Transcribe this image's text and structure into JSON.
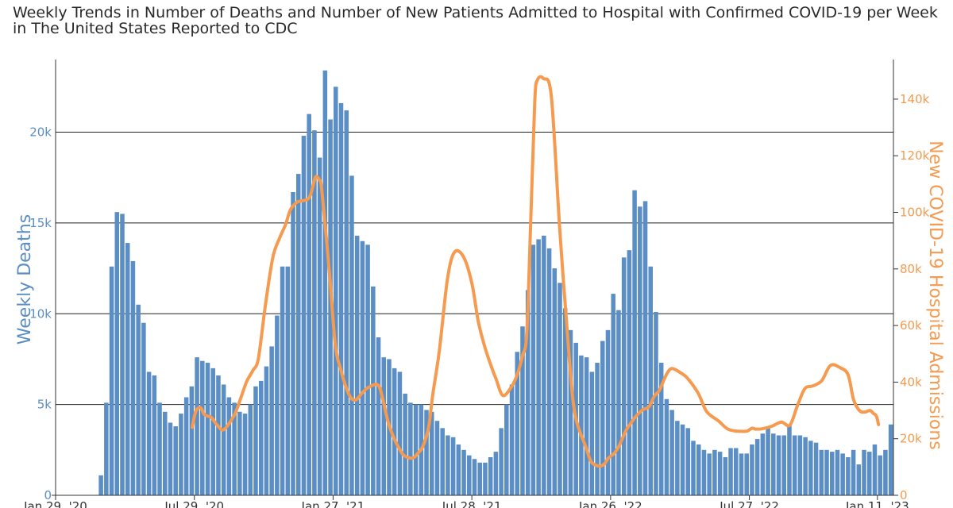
{
  "chart_data": {
    "type": "bar",
    "title": "Weekly Trends in Number of Deaths and Number of New Patients Admitted to Hospital with Confirmed COVID-19 per Week in The United States Reported to CDC",
    "ylabel_left": "Weekly Deaths",
    "ylabel_right": "New COVID-19 Hospital Admissions",
    "ylim_left": [
      0,
      24000
    ],
    "ylim_right": [
      0,
      154000
    ],
    "yticks_left": [
      {
        "value": 0,
        "label": "0"
      },
      {
        "value": 5000,
        "label": "5k"
      },
      {
        "value": 10000,
        "label": "10k"
      },
      {
        "value": 15000,
        "label": "15k"
      },
      {
        "value": 20000,
        "label": "20k"
      }
    ],
    "yticks_right": [
      {
        "value": 0,
        "label": "0"
      },
      {
        "value": 20000,
        "label": "20k"
      },
      {
        "value": 40000,
        "label": "40k"
      },
      {
        "value": 60000,
        "label": "60k"
      },
      {
        "value": 80000,
        "label": "80k"
      },
      {
        "value": 100000,
        "label": "100k"
      },
      {
        "value": 120000,
        "label": "120k"
      },
      {
        "value": 140000,
        "label": "140k"
      }
    ],
    "xticks": [
      {
        "week": 0,
        "label": "Jan 29, '20"
      },
      {
        "week": 26,
        "label": "Jul 29, '20"
      },
      {
        "week": 52,
        "label": "Jan 27, '21"
      },
      {
        "week": 78,
        "label": "Jul 28, '21"
      },
      {
        "week": 104,
        "label": "Jan 26, '22"
      },
      {
        "week": 130,
        "label": "Jul 27, '22"
      },
      {
        "week": 154,
        "label": "Jan 11, '23"
      }
    ],
    "grid": true,
    "series": [
      {
        "name": "Weekly Deaths",
        "type": "bar",
        "color": "#5b8ec4",
        "values": [
          0,
          0,
          0,
          0,
          0,
          0,
          0,
          0,
          1100,
          5100,
          12600,
          15600,
          15500,
          13900,
          12900,
          10500,
          9500,
          6800,
          6600,
          5100,
          4600,
          4000,
          3800,
          4500,
          5400,
          6000,
          7600,
          7400,
          7300,
          7000,
          6600,
          6100,
          5400,
          5100,
          4600,
          4500,
          5000,
          6000,
          6300,
          7100,
          8200,
          9900,
          12600,
          12600,
          16700,
          17700,
          19800,
          21000,
          20100,
          18600,
          23400,
          20700,
          22500,
          21600,
          21200,
          17600,
          14300,
          14000,
          13800,
          11500,
          8700,
          7600,
          7500,
          7000,
          6800,
          5600,
          5100,
          5000,
          5000,
          4700,
          4600,
          4100,
          3700,
          3300,
          3200,
          2800,
          2500,
          2200,
          2000,
          1800,
          1800,
          2100,
          2400,
          3700,
          5000,
          6100,
          7900,
          9300,
          11300,
          13800,
          14100,
          14300,
          13600,
          12500,
          11700,
          10300,
          9100,
          8400,
          7700,
          7600,
          6800,
          7300,
          8500,
          9100,
          11100,
          10200,
          13100,
          13500,
          16800,
          15900,
          16200,
          12600,
          10100,
          7300,
          5300,
          4700,
          4100,
          3900,
          3700,
          3000,
          2800,
          2500,
          2300,
          2500,
          2400,
          2100,
          2600,
          2600,
          2300,
          2300,
          2800,
          3100,
          3400,
          3700,
          3400,
          3300,
          3300,
          3900,
          3300,
          3300,
          3200,
          3000,
          2900,
          2500,
          2500,
          2400,
          2500,
          2300,
          2100,
          2500,
          1700,
          2500,
          2400,
          2800,
          2200,
          2500,
          3900
        ]
      },
      {
        "name": "New COVID-19 Hospital Admissions",
        "type": "line",
        "color": "#f59a4f",
        "x": [
          25.6,
          26.3,
          27.2,
          27.8,
          28.6,
          29.2,
          30.3,
          31.5,
          33.5,
          34.7,
          35.8,
          37,
          38,
          39.3,
          40.7,
          42,
          43.1,
          44,
          45.2,
          46.3,
          47.2,
          47.8,
          48.6,
          49,
          49.4,
          49.9,
          51.3,
          52.4,
          53.5,
          55,
          56.2,
          57.5,
          58.6,
          60.4,
          61.3,
          62.3,
          63.4,
          64.4,
          65.2,
          66.3,
          67.1,
          67.9,
          68.8,
          69.9,
          70.7,
          71.9,
          73.4,
          74.7,
          76.4,
          78,
          79.2,
          80.5,
          81.8,
          82.5,
          83.8,
          85.4,
          86.5,
          87.5,
          88.3,
          89.1,
          89.8,
          90.3,
          91.4,
          92.9,
          94.5,
          96.3,
          97.4,
          99.4,
          100.3,
          101.3,
          102.1,
          102.9,
          103.5,
          104.7,
          105.6,
          106.8,
          107.8,
          108.8,
          110,
          111.2,
          112.2,
          113.1,
          114.5,
          115.5,
          117.1,
          118.4,
          120.4,
          122,
          124.2,
          125.8,
          127.1,
          128.4,
          129.6,
          130.5,
          131.2,
          132.4,
          134.2,
          136,
          137.6,
          139,
          140.4,
          142,
          143.6,
          145.2,
          147,
          148.5,
          149.5,
          150.6,
          151.6,
          152.6,
          153.2,
          153.8,
          154.2
        ],
        "values": [
          24000,
          29800,
          30900,
          28700,
          27900,
          27500,
          24800,
          23200,
          28400,
          34400,
          40200,
          44200,
          48400,
          67000,
          84000,
          91000,
          95700,
          100900,
          103500,
          104100,
          104600,
          106300,
          112000,
          112500,
          111400,
          107600,
          79000,
          53500,
          44000,
          35500,
          33700,
          36300,
          38100,
          39000,
          34100,
          26000,
          20200,
          16500,
          14200,
          13200,
          13300,
          14900,
          17200,
          24000,
          35900,
          50900,
          76000,
          85800,
          84400,
          75000,
          61500,
          52000,
          44700,
          41300,
          35300,
          38300,
          42700,
          49400,
          57800,
          100500,
          139500,
          146800,
          147300,
          140800,
          93300,
          47400,
          28000,
          16900,
          12000,
          10600,
          10300,
          11200,
          13000,
          14900,
          17500,
          22600,
          25500,
          28000,
          30200,
          31300,
          35100,
          37000,
          42800,
          44800,
          43300,
          41400,
          36100,
          29600,
          26300,
          23600,
          22800,
          22600,
          22700,
          23700,
          23400,
          23500,
          24400,
          25900,
          24800,
          31600,
          37700,
          38700,
          40600,
          45900,
          45100,
          42600,
          34000,
          30000,
          29400,
          30000,
          29000,
          28000,
          25000
        ]
      }
    ]
  }
}
